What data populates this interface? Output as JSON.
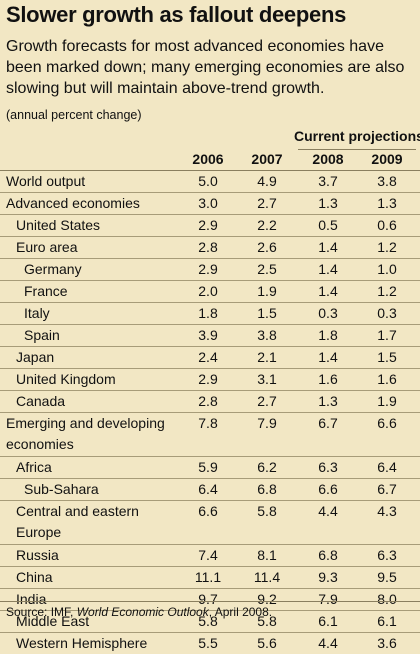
{
  "title": "Slower growth as fallout deepens",
  "subtitle": "Growth forecasts for most advanced economies have been marked down; many emerging economies are also slowing but will maintain above-trend growth.",
  "unit_note": "(annual percent change)",
  "projections_header": "Current projections",
  "source": {
    "prefix": "Source: IMF, ",
    "publication": "World Economic Outlook",
    "suffix": ", April 2008."
  },
  "chart_data": {
    "type": "table",
    "columns": [
      "2006",
      "2007",
      "2008",
      "2009"
    ],
    "rows": [
      {
        "label": "World output",
        "level": 0,
        "values": [
          "5.0",
          "4.9",
          "3.7",
          "3.8"
        ]
      },
      {
        "label": "Advanced economies",
        "level": 0,
        "values": [
          "3.0",
          "2.7",
          "1.3",
          "1.3"
        ]
      },
      {
        "label": "United States",
        "level": 1,
        "values": [
          "2.9",
          "2.2",
          "0.5",
          "0.6"
        ]
      },
      {
        "label": "Euro area",
        "level": 1,
        "values": [
          "2.8",
          "2.6",
          "1.4",
          "1.2"
        ]
      },
      {
        "label": "Germany",
        "level": 2,
        "values": [
          "2.9",
          "2.5",
          "1.4",
          "1.0"
        ]
      },
      {
        "label": "France",
        "level": 2,
        "values": [
          "2.0",
          "1.9",
          "1.4",
          "1.2"
        ]
      },
      {
        "label": "Italy",
        "level": 2,
        "values": [
          "1.8",
          "1.5",
          "0.3",
          "0.3"
        ]
      },
      {
        "label": "Spain",
        "level": 2,
        "values": [
          "3.9",
          "3.8",
          "1.8",
          "1.7"
        ]
      },
      {
        "label": "Japan",
        "level": 1,
        "values": [
          "2.4",
          "2.1",
          "1.4",
          "1.5"
        ]
      },
      {
        "label": "United Kingdom",
        "level": 1,
        "values": [
          "2.9",
          "3.1",
          "1.6",
          "1.6"
        ]
      },
      {
        "label": "Canada",
        "level": 1,
        "values": [
          "2.8",
          "2.7",
          "1.3",
          "1.9"
        ]
      },
      {
        "label": "Emerging and developing economies",
        "level": 0,
        "values": [
          "7.8",
          "7.9",
          "6.7",
          "6.6"
        ]
      },
      {
        "label": "Africa",
        "level": 1,
        "values": [
          "5.9",
          "6.2",
          "6.3",
          "6.4"
        ]
      },
      {
        "label": "Sub-Sahara",
        "level": 2,
        "values": [
          "6.4",
          "6.8",
          "6.6",
          "6.7"
        ]
      },
      {
        "label": "Central and eastern Europe",
        "level": 1,
        "values": [
          "6.6",
          "5.8",
          "4.4",
          "4.3"
        ]
      },
      {
        "label": "Russia",
        "level": 1,
        "values": [
          "7.4",
          "8.1",
          "6.8",
          "6.3"
        ]
      },
      {
        "label": "China",
        "level": 1,
        "values": [
          "11.1",
          "11.4",
          "9.3",
          "9.5"
        ]
      },
      {
        "label": "India",
        "level": 1,
        "values": [
          "9.7",
          "9.2",
          "7.9",
          "8.0"
        ]
      },
      {
        "label": "Middle East",
        "level": 1,
        "values": [
          "5.8",
          "5.8",
          "6.1",
          "6.1"
        ]
      },
      {
        "label": "Western Hemisphere",
        "level": 1,
        "values": [
          "5.5",
          "5.6",
          "4.4",
          "3.6"
        ]
      }
    ]
  }
}
